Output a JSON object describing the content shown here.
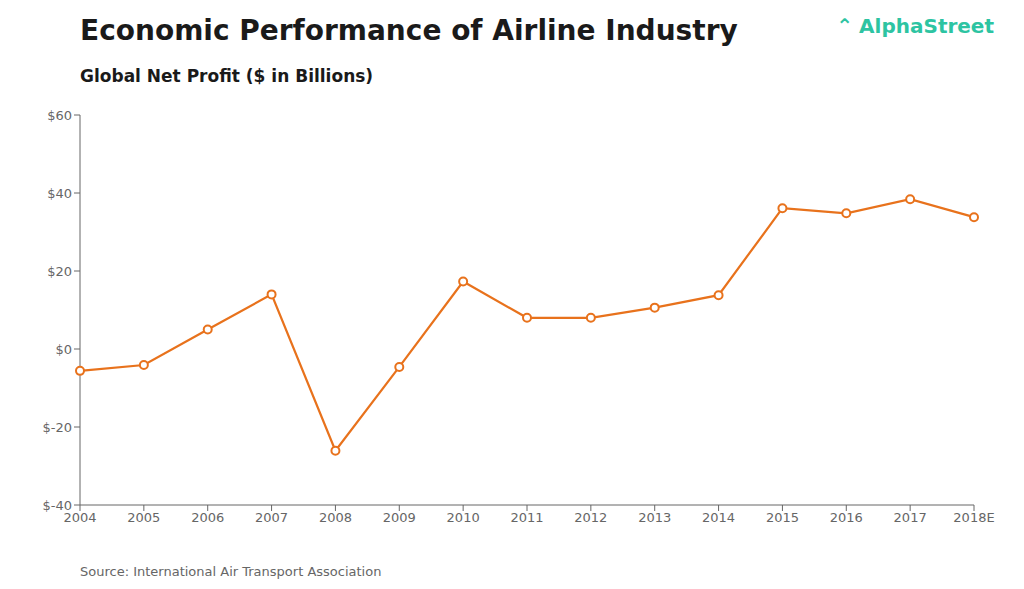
{
  "chart_data": {
    "type": "line",
    "title": "Economic Performance of Airline Industry",
    "subtitle": "Global Net Profit ($ in Billions)",
    "source": "Source: International Air Transport Association",
    "annotations": [
      {
        "text": "⌃",
        "color": "#2DC4A2"
      },
      {
        "text": "AlphaStreet",
        "color": "#2DC4A2"
      }
    ],
    "categories": [
      "2004",
      "2005",
      "2006",
      "2007",
      "2008",
      "2009",
      "2010",
      "2011",
      "2012",
      "2013",
      "2014",
      "2015",
      "2016",
      "2017",
      "2018E"
    ],
    "values": [
      -5.6,
      -4.1,
      5.0,
      14.0,
      -26.1,
      -4.6,
      17.3,
      8.0,
      8.0,
      10.6,
      13.8,
      36.1,
      34.8,
      38.4,
      33.8
    ],
    "color": "#E8721C",
    "marker": "circle",
    "ylim": [
      -40,
      60
    ],
    "yticks": [
      {
        "value": -40,
        "label": "$-40"
      },
      {
        "value": -20,
        "label": "$-20"
      },
      {
        "value": 0,
        "label": "$0"
      },
      {
        "value": 20,
        "label": "$20"
      },
      {
        "value": 40,
        "label": "$40"
      },
      {
        "value": 60,
        "label": "$60"
      }
    ],
    "grid": false
  }
}
